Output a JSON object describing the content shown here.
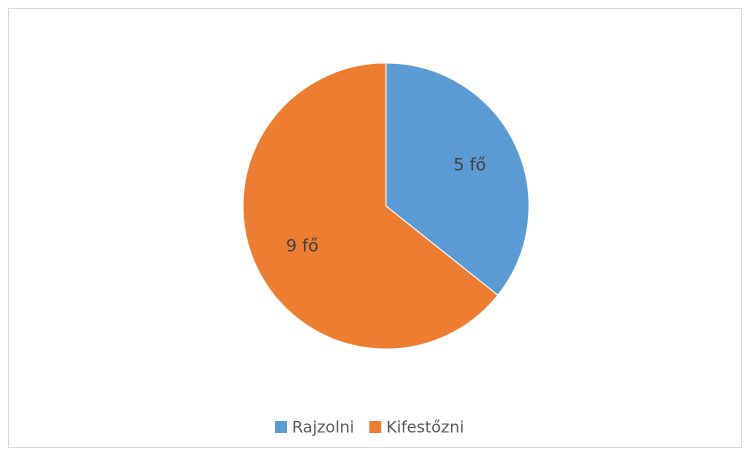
{
  "chart_data": {
    "type": "pie",
    "categories": [
      "Rajzolni",
      "Kifestőzni"
    ],
    "values": [
      5,
      9
    ],
    "value_labels": [
      "5 fő",
      "9 fő"
    ],
    "colors": [
      "#5b9bd5",
      "#ed7d31"
    ],
    "legend": "bottom"
  }
}
